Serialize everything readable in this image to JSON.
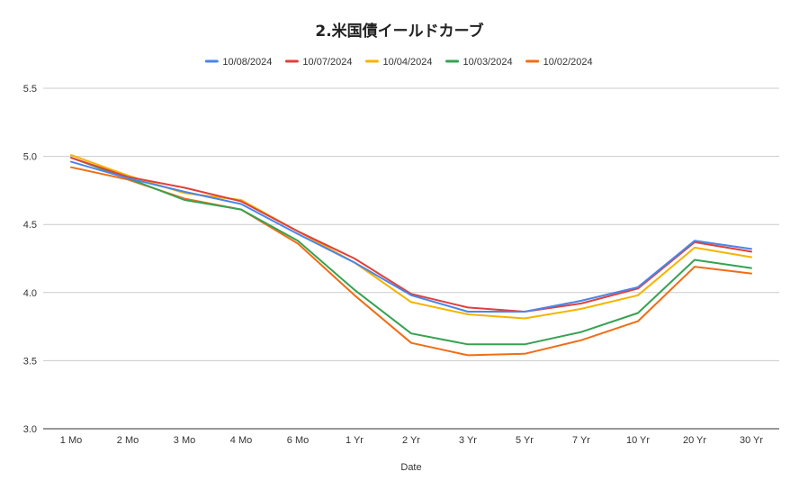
{
  "chart_data": {
    "type": "line",
    "title": "2.米国債イールドカーブ",
    "xlabel": "Date",
    "ylabel": "",
    "ylim": [
      3.0,
      5.5
    ],
    "yticks": [
      "3.0",
      "3.5",
      "4.0",
      "4.5",
      "5.0",
      "5.5"
    ],
    "grid": true,
    "legend_position": "top",
    "categories": [
      "1 Mo",
      "2 Mo",
      "3 Mo",
      "4 Mo",
      "6 Mo",
      "1 Yr",
      "2 Yr",
      "3 Yr",
      "5 Yr",
      "7 Yr",
      "10 Yr",
      "20 Yr",
      "30 Yr"
    ],
    "series": [
      {
        "name": "10/08/2024",
        "color": "#4a86e8",
        "values": [
          4.96,
          4.84,
          4.74,
          4.65,
          4.43,
          4.22,
          3.98,
          3.86,
          3.86,
          3.94,
          4.04,
          4.38,
          4.32
        ]
      },
      {
        "name": "10/07/2024",
        "color": "#e0403b",
        "values": [
          4.99,
          4.85,
          4.77,
          4.67,
          4.45,
          4.25,
          3.99,
          3.89,
          3.86,
          3.92,
          4.03,
          4.37,
          4.3
        ]
      },
      {
        "name": "10/04/2024",
        "color": "#f4b400",
        "values": [
          5.01,
          4.86,
          4.73,
          4.68,
          4.45,
          4.22,
          3.93,
          3.84,
          3.81,
          3.88,
          3.98,
          4.33,
          4.26
        ]
      },
      {
        "name": "10/03/2024",
        "color": "#36a252",
        "values": [
          4.99,
          4.84,
          4.68,
          4.61,
          4.38,
          4.02,
          3.7,
          3.62,
          3.62,
          3.71,
          3.85,
          4.24,
          4.18
        ]
      },
      {
        "name": "10/02/2024",
        "color": "#f06d16",
        "values": [
          4.92,
          4.83,
          4.69,
          4.61,
          4.36,
          3.98,
          3.63,
          3.54,
          3.55,
          3.65,
          3.79,
          4.19,
          4.14
        ]
      }
    ]
  }
}
